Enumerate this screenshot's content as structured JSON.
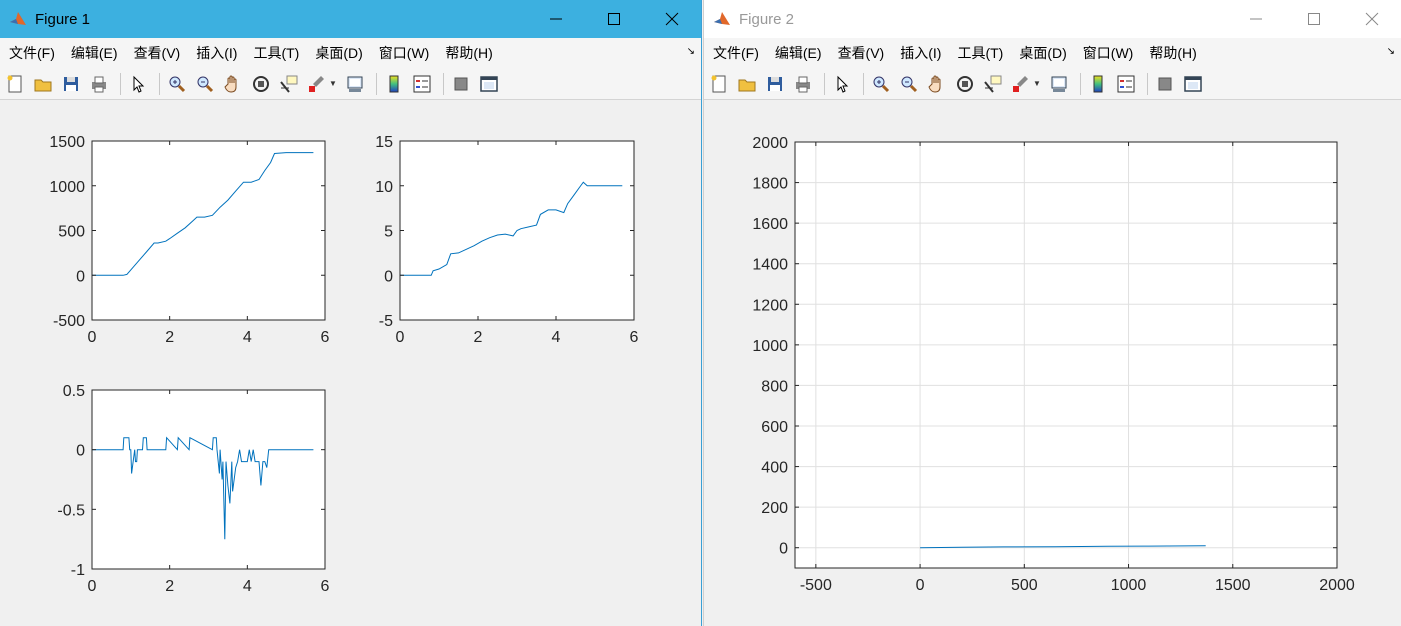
{
  "windows": [
    {
      "title": "Figure 1",
      "active": true,
      "menu": [
        "文件(F)",
        "编辑(E)",
        "查看(V)",
        "插入(I)",
        "工具(T)",
        "桌面(D)",
        "窗口(W)",
        "帮助(H)"
      ],
      "menu_arrow": "↘"
    },
    {
      "title": "Figure 2",
      "active": false,
      "menu": [
        "文件(F)",
        "编辑(E)",
        "查看(V)",
        "插入(I)",
        "工具(T)",
        "桌面(D)",
        "窗口(W)",
        "帮助(H)"
      ],
      "menu_arrow": "↘"
    }
  ],
  "toolbar_icons": [
    "new-figure-icon",
    "open-file-icon",
    "save-icon",
    "print-icon",
    "edit-plot-arrow-icon",
    "zoom-in-icon",
    "zoom-out-icon",
    "pan-hand-icon",
    "rotate-3d-icon",
    "data-cursor-icon",
    "brush-icon",
    "link-plot-icon",
    "colorbar-icon",
    "legend-icon",
    "hide-plot-tools-icon",
    "show-plot-tools-icon"
  ],
  "colors": {
    "line": "#0072bd",
    "title_active": "#3cb0e0",
    "axes_bg": "#ffffff",
    "figure_bg": "#f0f0f0",
    "grid": "#e0e0e0"
  },
  "chart_data": [
    {
      "type": "line",
      "window": "Figure 1",
      "subplot": 1,
      "xlim": [
        0,
        6
      ],
      "ylim": [
        -500,
        1500
      ],
      "xticks": [
        "0",
        "2",
        "4",
        "6"
      ],
      "yticks": [
        "-500",
        "0",
        "500",
        "1000",
        "1500"
      ],
      "grid": false,
      "x": [
        0,
        0.8,
        0.9,
        1.0,
        1.2,
        1.4,
        1.6,
        1.7,
        1.9,
        2.0,
        2.2,
        2.4,
        2.6,
        2.7,
        2.9,
        3.1,
        3.3,
        3.5,
        3.7,
        3.9,
        4.1,
        4.3,
        4.45,
        4.6,
        4.7,
        5.0,
        5.7
      ],
      "y": [
        0,
        0,
        10,
        60,
        160,
        260,
        360,
        360,
        380,
        410,
        470,
        530,
        610,
        650,
        650,
        670,
        760,
        840,
        940,
        1040,
        1040,
        1070,
        1170,
        1260,
        1360,
        1370,
        1370
      ]
    },
    {
      "type": "line",
      "window": "Figure 1",
      "subplot": 2,
      "xlim": [
        0,
        6
      ],
      "ylim": [
        -5,
        15
      ],
      "xticks": [
        "0",
        "2",
        "4",
        "6"
      ],
      "yticks": [
        "-5",
        "0",
        "5",
        "10",
        "15"
      ],
      "grid": false,
      "x": [
        0,
        0.8,
        0.85,
        1.0,
        1.2,
        1.3,
        1.5,
        1.7,
        1.9,
        2.1,
        2.3,
        2.5,
        2.7,
        2.9,
        3.0,
        3.1,
        3.3,
        3.5,
        3.6,
        3.8,
        4.0,
        4.2,
        4.3,
        4.4,
        4.5,
        4.6,
        4.7,
        4.8,
        5.0,
        5.7
      ],
      "y": [
        0,
        0,
        0.5,
        0.7,
        1.2,
        2.4,
        2.5,
        2.9,
        3.3,
        3.8,
        4.2,
        4.5,
        4.6,
        4.4,
        5.0,
        5.2,
        5.4,
        5.6,
        6.8,
        7.3,
        7.3,
        7.0,
        8.0,
        8.6,
        9.2,
        9.8,
        10.4,
        10.0,
        10.0,
        10.0
      ]
    },
    {
      "type": "line",
      "window": "Figure 1",
      "subplot": 3,
      "xlim": [
        0,
        6
      ],
      "ylim": [
        -1,
        0.5
      ],
      "xticks": [
        "0",
        "2",
        "4",
        "6"
      ],
      "yticks": [
        "-1",
        "-0.5",
        "0",
        "0.5"
      ],
      "grid": false,
      "x": [
        0,
        0.8,
        0.82,
        0.95,
        0.97,
        1.0,
        1.02,
        1.1,
        1.12,
        1.15,
        1.17,
        1.3,
        1.32,
        1.4,
        1.42,
        1.9,
        1.92,
        2.2,
        2.22,
        2.5,
        2.52,
        3.1,
        3.12,
        3.2,
        3.22,
        3.28,
        3.3,
        3.35,
        3.37,
        3.42,
        3.45,
        3.5,
        3.55,
        3.6,
        3.62,
        3.7,
        3.75,
        3.8,
        3.85,
        4.0,
        4.05,
        4.1,
        4.15,
        4.2,
        4.3,
        4.35,
        4.4,
        4.45,
        4.5,
        4.55,
        4.6,
        4.65,
        5.7
      ],
      "y": [
        0,
        0,
        0.1,
        0.1,
        0,
        0,
        -0.2,
        0,
        -0.1,
        -0.1,
        0,
        0,
        0.1,
        0.1,
        0,
        0,
        0.1,
        0,
        0.1,
        0,
        0.1,
        0,
        0.1,
        0.1,
        0,
        -0.2,
        0,
        -0.25,
        -0.1,
        -0.75,
        -0.1,
        -0.3,
        -0.45,
        -0.1,
        -0.35,
        -0.15,
        -0.1,
        0,
        -0.1,
        -0.1,
        0,
        -0.1,
        0,
        -0.1,
        -0.1,
        -0.3,
        -0.1,
        -0.1,
        -0.15,
        0,
        0,
        0,
        0
      ]
    },
    {
      "type": "line",
      "window": "Figure 2",
      "subplot": 1,
      "xlim": [
        -600,
        2000
      ],
      "ylim": [
        -100,
        2000
      ],
      "xticks": [
        "-500",
        "0",
        "500",
        "1000",
        "1500",
        "2000"
      ],
      "yticks": [
        "0",
        "200",
        "400",
        "600",
        "800",
        "1000",
        "1200",
        "1400",
        "1600",
        "1800",
        "2000"
      ],
      "grid": true,
      "x": [
        0,
        200,
        400,
        650,
        900,
        1100,
        1370
      ],
      "y": [
        0,
        2,
        4,
        5,
        7,
        8,
        10
      ]
    }
  ]
}
